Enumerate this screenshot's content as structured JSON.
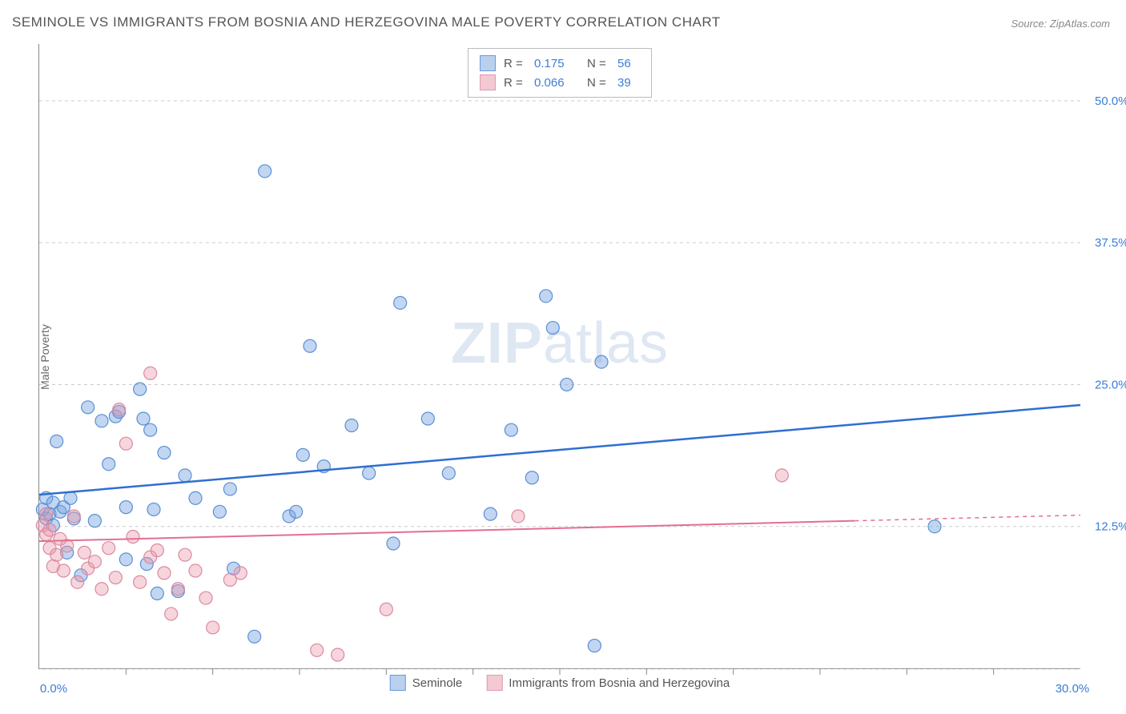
{
  "title": "SEMINOLE VS IMMIGRANTS FROM BOSNIA AND HERZEGOVINA MALE POVERTY CORRELATION CHART",
  "source": "Source: ZipAtlas.com",
  "ylabel": "Male Poverty",
  "watermark_zip": "ZIP",
  "watermark_atlas": "atlas",
  "chart": {
    "type": "scatter",
    "xlim": [
      0,
      30
    ],
    "ylim": [
      0,
      55
    ],
    "x_ticks_major": [
      0,
      30
    ],
    "x_ticks_minor": [
      2.5,
      5,
      7.5,
      10,
      12.5,
      15,
      17.5,
      20,
      22.5,
      25,
      27.5
    ],
    "x_tick_labels": {
      "0": "0.0%",
      "30": "30.0%"
    },
    "y_gridlines": [
      0,
      12.5,
      25,
      37.5,
      50
    ],
    "y_tick_labels": {
      "12.5": "12.5%",
      "25": "25.0%",
      "37.5": "37.5%",
      "50": "50.0%"
    },
    "background_color": "#ffffff",
    "grid_color": "#cccccc",
    "axis_label_color": "#3b7dd8",
    "marker_radius": 8,
    "marker_stroke_width": 1.2,
    "series": [
      {
        "id": "seminole",
        "label": "Seminole",
        "fill_color": "rgba(120,165,225,0.45)",
        "stroke_color": "#5a8fd6",
        "swatch_fill": "#b9d0ef",
        "swatch_border": "#6b9bd8",
        "r_value": "0.175",
        "n_value": "56",
        "trend": {
          "x1": 0,
          "y1": 15.3,
          "x2": 30,
          "y2": 23.2,
          "color": "#2e6fd0"
        },
        "points": [
          [
            0.1,
            14.0
          ],
          [
            0.2,
            13.2
          ],
          [
            0.2,
            15.0
          ],
          [
            0.3,
            13.6
          ],
          [
            0.4,
            14.6
          ],
          [
            0.4,
            12.6
          ],
          [
            0.5,
            20.0
          ],
          [
            0.6,
            13.8
          ],
          [
            0.7,
            14.2
          ],
          [
            0.8,
            10.2
          ],
          [
            0.9,
            15.0
          ],
          [
            1.0,
            13.2
          ],
          [
            1.2,
            8.2
          ],
          [
            1.4,
            23.0
          ],
          [
            1.6,
            13.0
          ],
          [
            1.8,
            21.8
          ],
          [
            2.0,
            18.0
          ],
          [
            2.2,
            22.2
          ],
          [
            2.3,
            22.6
          ],
          [
            2.5,
            14.2
          ],
          [
            2.5,
            9.6
          ],
          [
            2.9,
            24.6
          ],
          [
            3.0,
            22.0
          ],
          [
            3.1,
            9.2
          ],
          [
            3.2,
            21.0
          ],
          [
            3.3,
            14.0
          ],
          [
            3.4,
            6.6
          ],
          [
            3.6,
            19.0
          ],
          [
            4.0,
            6.8
          ],
          [
            4.2,
            17.0
          ],
          [
            4.5,
            15.0
          ],
          [
            5.2,
            13.8
          ],
          [
            5.5,
            15.8
          ],
          [
            5.6,
            8.8
          ],
          [
            6.2,
            2.8
          ],
          [
            6.5,
            43.8
          ],
          [
            7.2,
            13.4
          ],
          [
            7.4,
            13.8
          ],
          [
            7.6,
            18.8
          ],
          [
            7.8,
            28.4
          ],
          [
            8.2,
            17.8
          ],
          [
            9.0,
            21.4
          ],
          [
            9.5,
            17.2
          ],
          [
            10.2,
            11.0
          ],
          [
            10.4,
            32.2
          ],
          [
            11.2,
            22.0
          ],
          [
            11.8,
            17.2
          ],
          [
            13.0,
            13.6
          ],
          [
            13.6,
            21.0
          ],
          [
            14.2,
            16.8
          ],
          [
            14.6,
            32.8
          ],
          [
            14.8,
            30.0
          ],
          [
            15.2,
            25.0
          ],
          [
            16.2,
            27.0
          ],
          [
            16.0,
            2.0
          ],
          [
            25.8,
            12.5
          ]
        ]
      },
      {
        "id": "bosnia",
        "label": "Immigrants from Bosnia and Herzegovina",
        "fill_color": "rgba(235,150,170,0.40)",
        "stroke_color": "#d98aa0",
        "swatch_fill": "#f3c9d3",
        "swatch_border": "#e09ab0",
        "r_value": "0.066",
        "n_value": "39",
        "trend": {
          "x1": 0,
          "y1": 11.2,
          "x2": 23.5,
          "y2": 13.0,
          "dash_ext_x2": 30,
          "dash_ext_y2": 13.5,
          "color": "#e36f8f"
        },
        "points": [
          [
            0.1,
            12.6
          ],
          [
            0.2,
            11.8
          ],
          [
            0.2,
            13.6
          ],
          [
            0.3,
            12.2
          ],
          [
            0.3,
            10.6
          ],
          [
            0.4,
            9.0
          ],
          [
            0.5,
            10.0
          ],
          [
            0.6,
            11.4
          ],
          [
            0.7,
            8.6
          ],
          [
            0.8,
            10.8
          ],
          [
            1.0,
            13.4
          ],
          [
            1.1,
            7.6
          ],
          [
            1.3,
            10.2
          ],
          [
            1.4,
            8.8
          ],
          [
            1.6,
            9.4
          ],
          [
            1.8,
            7.0
          ],
          [
            2.0,
            10.6
          ],
          [
            2.2,
            8.0
          ],
          [
            2.3,
            22.8
          ],
          [
            2.5,
            19.8
          ],
          [
            2.7,
            11.6
          ],
          [
            2.9,
            7.6
          ],
          [
            3.2,
            9.8
          ],
          [
            3.2,
            26.0
          ],
          [
            3.4,
            10.4
          ],
          [
            3.6,
            8.4
          ],
          [
            3.8,
            4.8
          ],
          [
            4.0,
            7.0
          ],
          [
            4.2,
            10.0
          ],
          [
            4.5,
            8.6
          ],
          [
            4.8,
            6.2
          ],
          [
            5.0,
            3.6
          ],
          [
            5.5,
            7.8
          ],
          [
            5.8,
            8.4
          ],
          [
            8.0,
            1.6
          ],
          [
            8.6,
            1.2
          ],
          [
            10.0,
            5.2
          ],
          [
            13.8,
            13.4
          ],
          [
            21.4,
            17.0
          ]
        ]
      }
    ]
  }
}
